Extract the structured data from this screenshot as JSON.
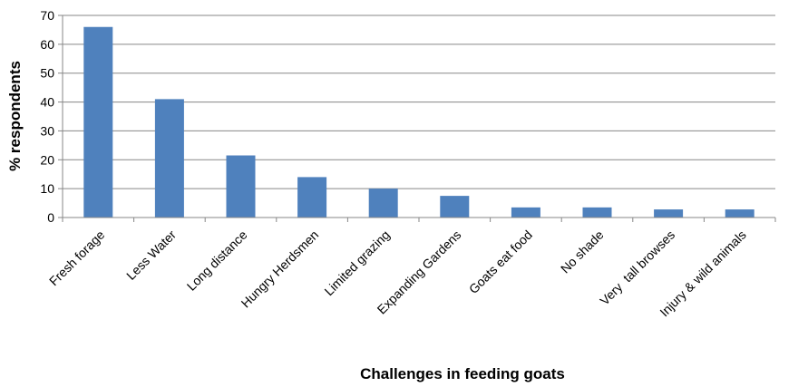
{
  "chart_data": {
    "type": "bar",
    "title": "",
    "xlabel": "Challenges in feeding goats",
    "ylabel": "% respondents",
    "ylim": [
      0,
      70
    ],
    "yticks": [
      0,
      10,
      20,
      30,
      40,
      50,
      60,
      70
    ],
    "grid": true,
    "legend": "none",
    "bar_color": "#4F81BD",
    "categories": [
      "Fresh forage",
      "Less Water",
      "Long distance",
      "Hungry Herdsmen",
      "Limited grazing",
      "Expanding Gardens",
      "Goats eat food",
      "No shade",
      "Very  tall browses",
      "Injury & wild animals"
    ],
    "values": [
      66,
      41,
      21.5,
      14,
      10,
      7.5,
      3.5,
      3.5,
      2.8,
      2.8
    ]
  }
}
